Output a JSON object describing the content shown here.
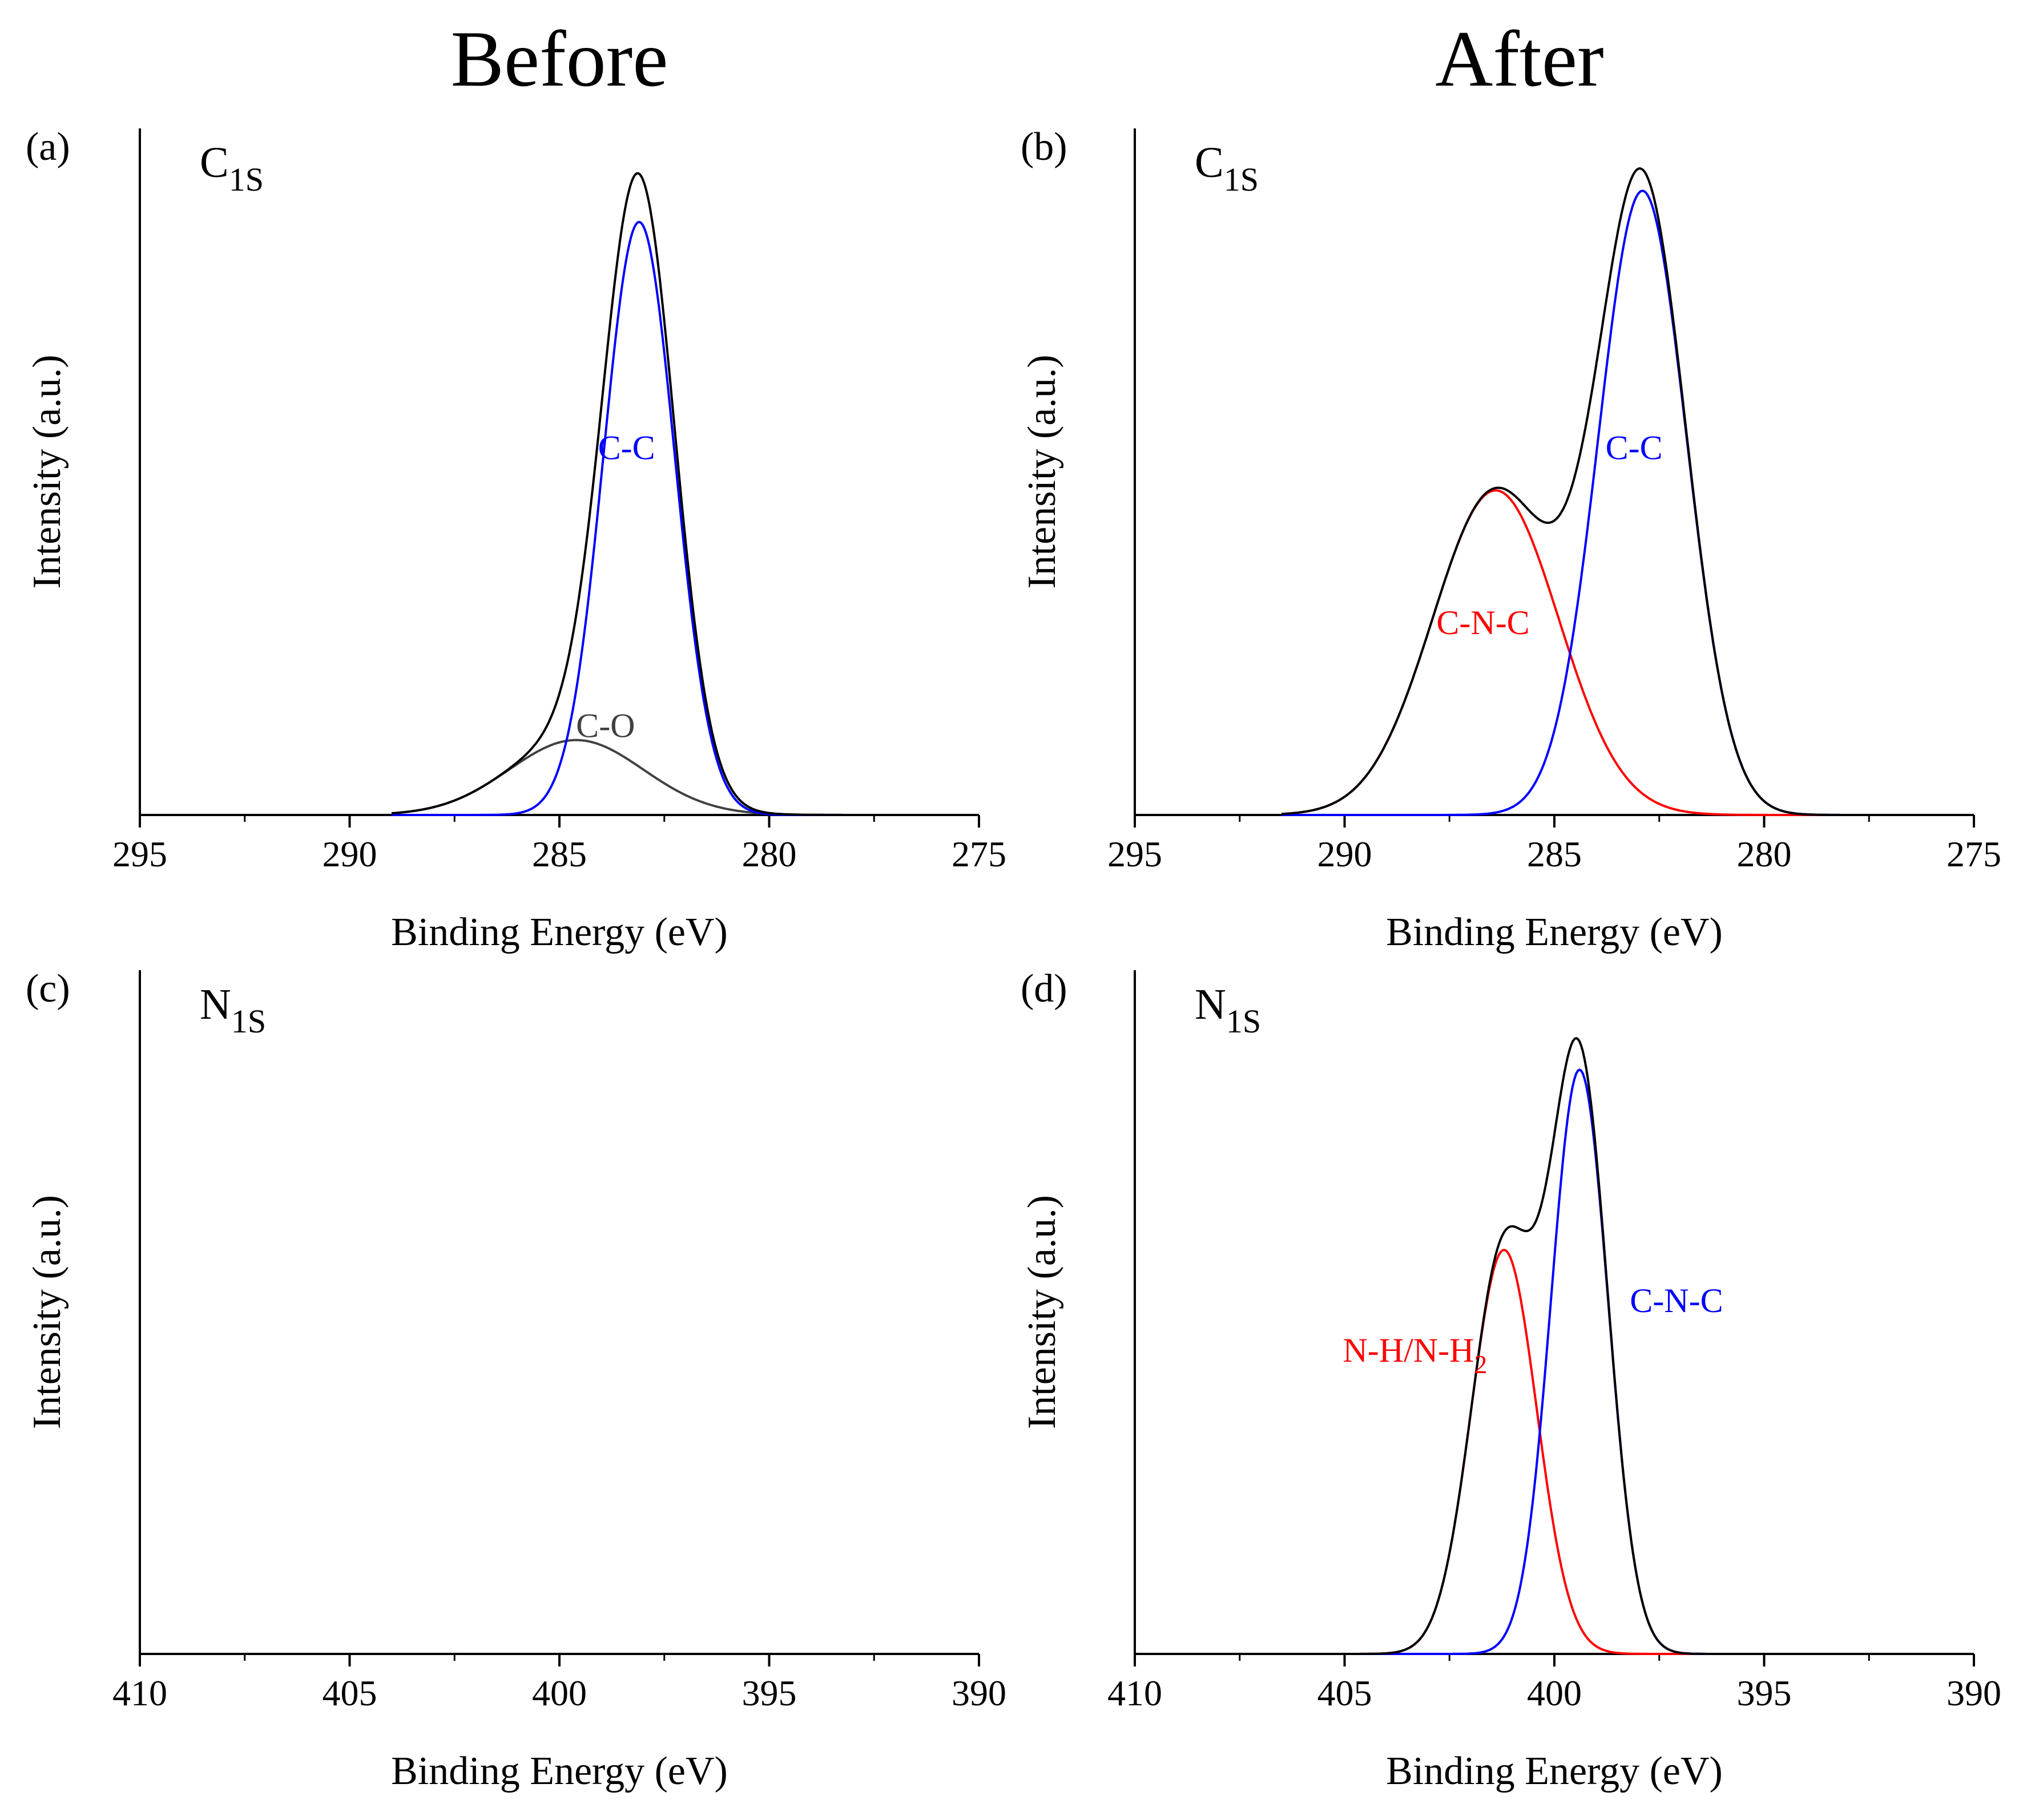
{
  "column_titles": [
    "Before",
    "After"
  ],
  "colors": {
    "total": "#000000",
    "blue": "#0000ff",
    "red": "#ff0000",
    "gray": "#404040",
    "axis": "#000000"
  },
  "chart_data": [
    {
      "id": "a",
      "type": "line",
      "panel_label": "(a)",
      "region_label": {
        "main": "C",
        "sub": "1S"
      },
      "xlabel": "Binding Energy (eV)",
      "ylabel": "Intensity (a.u.)",
      "xlim": [
        295,
        275
      ],
      "xticks": [
        295,
        290,
        285,
        280,
        275
      ],
      "ylim": [
        0,
        1.1
      ],
      "x_range": [
        289.0,
        277.5
      ],
      "series": [
        {
          "id": "c-o",
          "color": "#404040",
          "peaks": [
            {
              "center": 284.6,
              "height": 0.12,
              "sigma": 1.6
            }
          ]
        },
        {
          "id": "c-c",
          "color": "#0000ff",
          "peaks": [
            {
              "center": 283.1,
              "height": 0.95,
              "sigma": 0.85
            }
          ]
        },
        {
          "id": "total",
          "color": "#000000",
          "peaks": [
            {
              "center": 284.6,
              "height": 0.12,
              "sigma": 1.6
            },
            {
              "center": 283.1,
              "height": 0.95,
              "sigma": 0.85
            }
          ]
        }
      ],
      "annotations": [
        {
          "text": "C-C",
          "color": "#0000ff",
          "x": 283.4,
          "y": 0.57
        },
        {
          "text": "C-O",
          "color": "#404040",
          "x": 283.9,
          "y": 0.125
        }
      ]
    },
    {
      "id": "b",
      "type": "line",
      "panel_label": "(b)",
      "region_label": {
        "main": "C",
        "sub": "1S"
      },
      "xlabel": "Binding Energy (eV)",
      "ylabel": "Intensity (a.u.)",
      "xlim": [
        295,
        275
      ],
      "xticks": [
        295,
        290,
        285,
        280,
        275
      ],
      "ylim": [
        0,
        1.1
      ],
      "x_range": [
        291.5,
        278.0
      ],
      "series": [
        {
          "id": "c-n-c",
          "color": "#ff0000",
          "peaks": [
            {
              "center": 286.4,
              "height": 0.52,
              "sigma": 1.5
            }
          ]
        },
        {
          "id": "c-c",
          "color": "#0000ff",
          "peaks": [
            {
              "center": 282.9,
              "height": 1.0,
              "sigma": 1.05
            }
          ]
        },
        {
          "id": "total",
          "color": "#000000",
          "peaks": [
            {
              "center": 286.4,
              "height": 0.52,
              "sigma": 1.5
            },
            {
              "center": 282.9,
              "height": 1.0,
              "sigma": 1.05
            }
          ]
        }
      ],
      "annotations": [
        {
          "text": "C-C",
          "color": "#0000ff",
          "x": 283.1,
          "y": 0.57
        },
        {
          "text": "C-N-C",
          "color": "#ff0000",
          "x": 286.7,
          "y": 0.29
        }
      ]
    },
    {
      "id": "c",
      "type": "line",
      "panel_label": "(c)",
      "region_label": {
        "main": "N",
        "sub": "1S"
      },
      "xlabel": "Binding Energy (eV)",
      "ylabel": "Intensity (a.u.)",
      "xlim": [
        410,
        390
      ],
      "xticks": [
        410,
        405,
        400,
        395,
        390
      ],
      "ylim": [
        0,
        1.1
      ],
      "x_range": [
        410,
        390
      ],
      "series": [
        {
          "id": "total",
          "color": "#000000",
          "peaks": []
        }
      ],
      "annotations": []
    },
    {
      "id": "d",
      "type": "line",
      "panel_label": "(d)",
      "region_label": {
        "main": "N",
        "sub": "1S"
      },
      "xlabel": "Binding Energy (eV)",
      "ylabel": "Intensity (a.u.)",
      "xlim": [
        410,
        390
      ],
      "xticks": [
        410,
        405,
        400,
        395,
        390
      ],
      "ylim": [
        0,
        1.1
      ],
      "x_range": [
        410,
        390
      ],
      "series": [
        {
          "id": "n-h",
          "color": "#ff0000",
          "peaks": [
            {
              "center": 401.2,
              "height": 0.65,
              "sigma": 0.78
            }
          ]
        },
        {
          "id": "c-n-c",
          "color": "#0000ff",
          "peaks": [
            {
              "center": 399.4,
              "height": 0.94,
              "sigma": 0.68
            }
          ]
        },
        {
          "id": "total",
          "color": "#000000",
          "peaks": [
            {
              "center": 401.2,
              "height": 0.65,
              "sigma": 0.78
            },
            {
              "center": 399.4,
              "height": 0.94,
              "sigma": 0.68
            }
          ]
        }
      ],
      "annotations": [
        {
          "text": "C-N-C",
          "color": "#0000ff",
          "x": 398.2,
          "y": 0.55,
          "anchor": "start"
        },
        {
          "text": "N-H/N-H",
          "sub": "2",
          "color": "#ff0000",
          "x": 401.6,
          "y": 0.47,
          "anchor": "end"
        }
      ]
    }
  ]
}
